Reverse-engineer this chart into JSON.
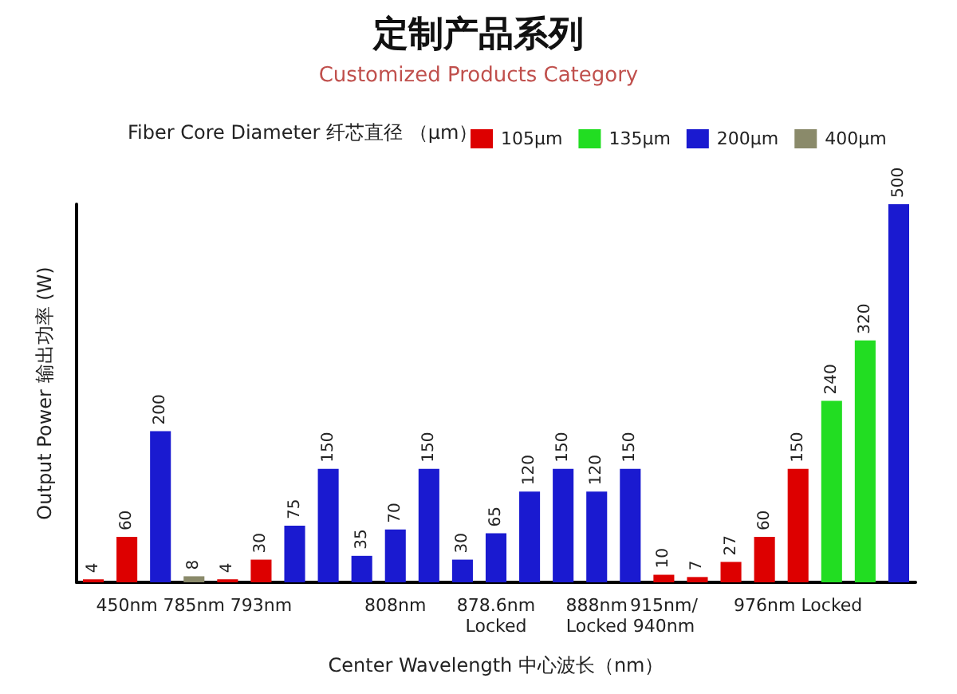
{
  "chart_data": {
    "type": "bar",
    "title": "定制产品系列",
    "subtitle": "Customized Products Category",
    "xlabel": "Center Wavelength 中心波长（nm）",
    "ylabel": "Output Power 输出功率 (W)",
    "legend_title": "Fiber Core Diameter 纤芯直径 （µm）",
    "legend": "top",
    "tick_labels": "x",
    "data_labels": true,
    "categories": [
      null,
      "450nm",
      null,
      "785nm",
      null,
      "793nm",
      null,
      null,
      null,
      "808nm",
      null,
      null,
      "878.6nm\nLocked",
      null,
      null,
      "888nm\nLocked",
      null,
      "915nm/\n940nm",
      null,
      null,
      null,
      "976nm Locked",
      null,
      null,
      null
    ],
    "series": [
      {
        "name": "105µm",
        "color": "#dd0000",
        "values": [
          4,
          60,
          null,
          null,
          4,
          30,
          null,
          null,
          null,
          null,
          null,
          null,
          null,
          null,
          null,
          null,
          null,
          10,
          7,
          27,
          60,
          150,
          null,
          null,
          null
        ]
      },
      {
        "name": "135µm",
        "color": "#22dd22",
        "values": [
          null,
          null,
          null,
          null,
          null,
          null,
          null,
          null,
          null,
          null,
          null,
          null,
          null,
          null,
          null,
          null,
          null,
          null,
          null,
          null,
          null,
          null,
          240,
          320,
          null
        ]
      },
      {
        "name": "200µm",
        "color": "#1a1ad0",
        "values": [
          null,
          null,
          200,
          null,
          null,
          null,
          75,
          150,
          35,
          70,
          150,
          30,
          65,
          120,
          150,
          120,
          150,
          null,
          null,
          null,
          null,
          null,
          null,
          null,
          500
        ]
      },
      {
        "name": "400µm",
        "color": "#8a8a6a",
        "values": [
          null,
          null,
          null,
          8,
          null,
          null,
          null,
          null,
          null,
          null,
          null,
          null,
          null,
          null,
          null,
          null,
          null,
          null,
          null,
          null,
          null,
          null,
          null,
          null,
          null
        ]
      }
    ]
  }
}
